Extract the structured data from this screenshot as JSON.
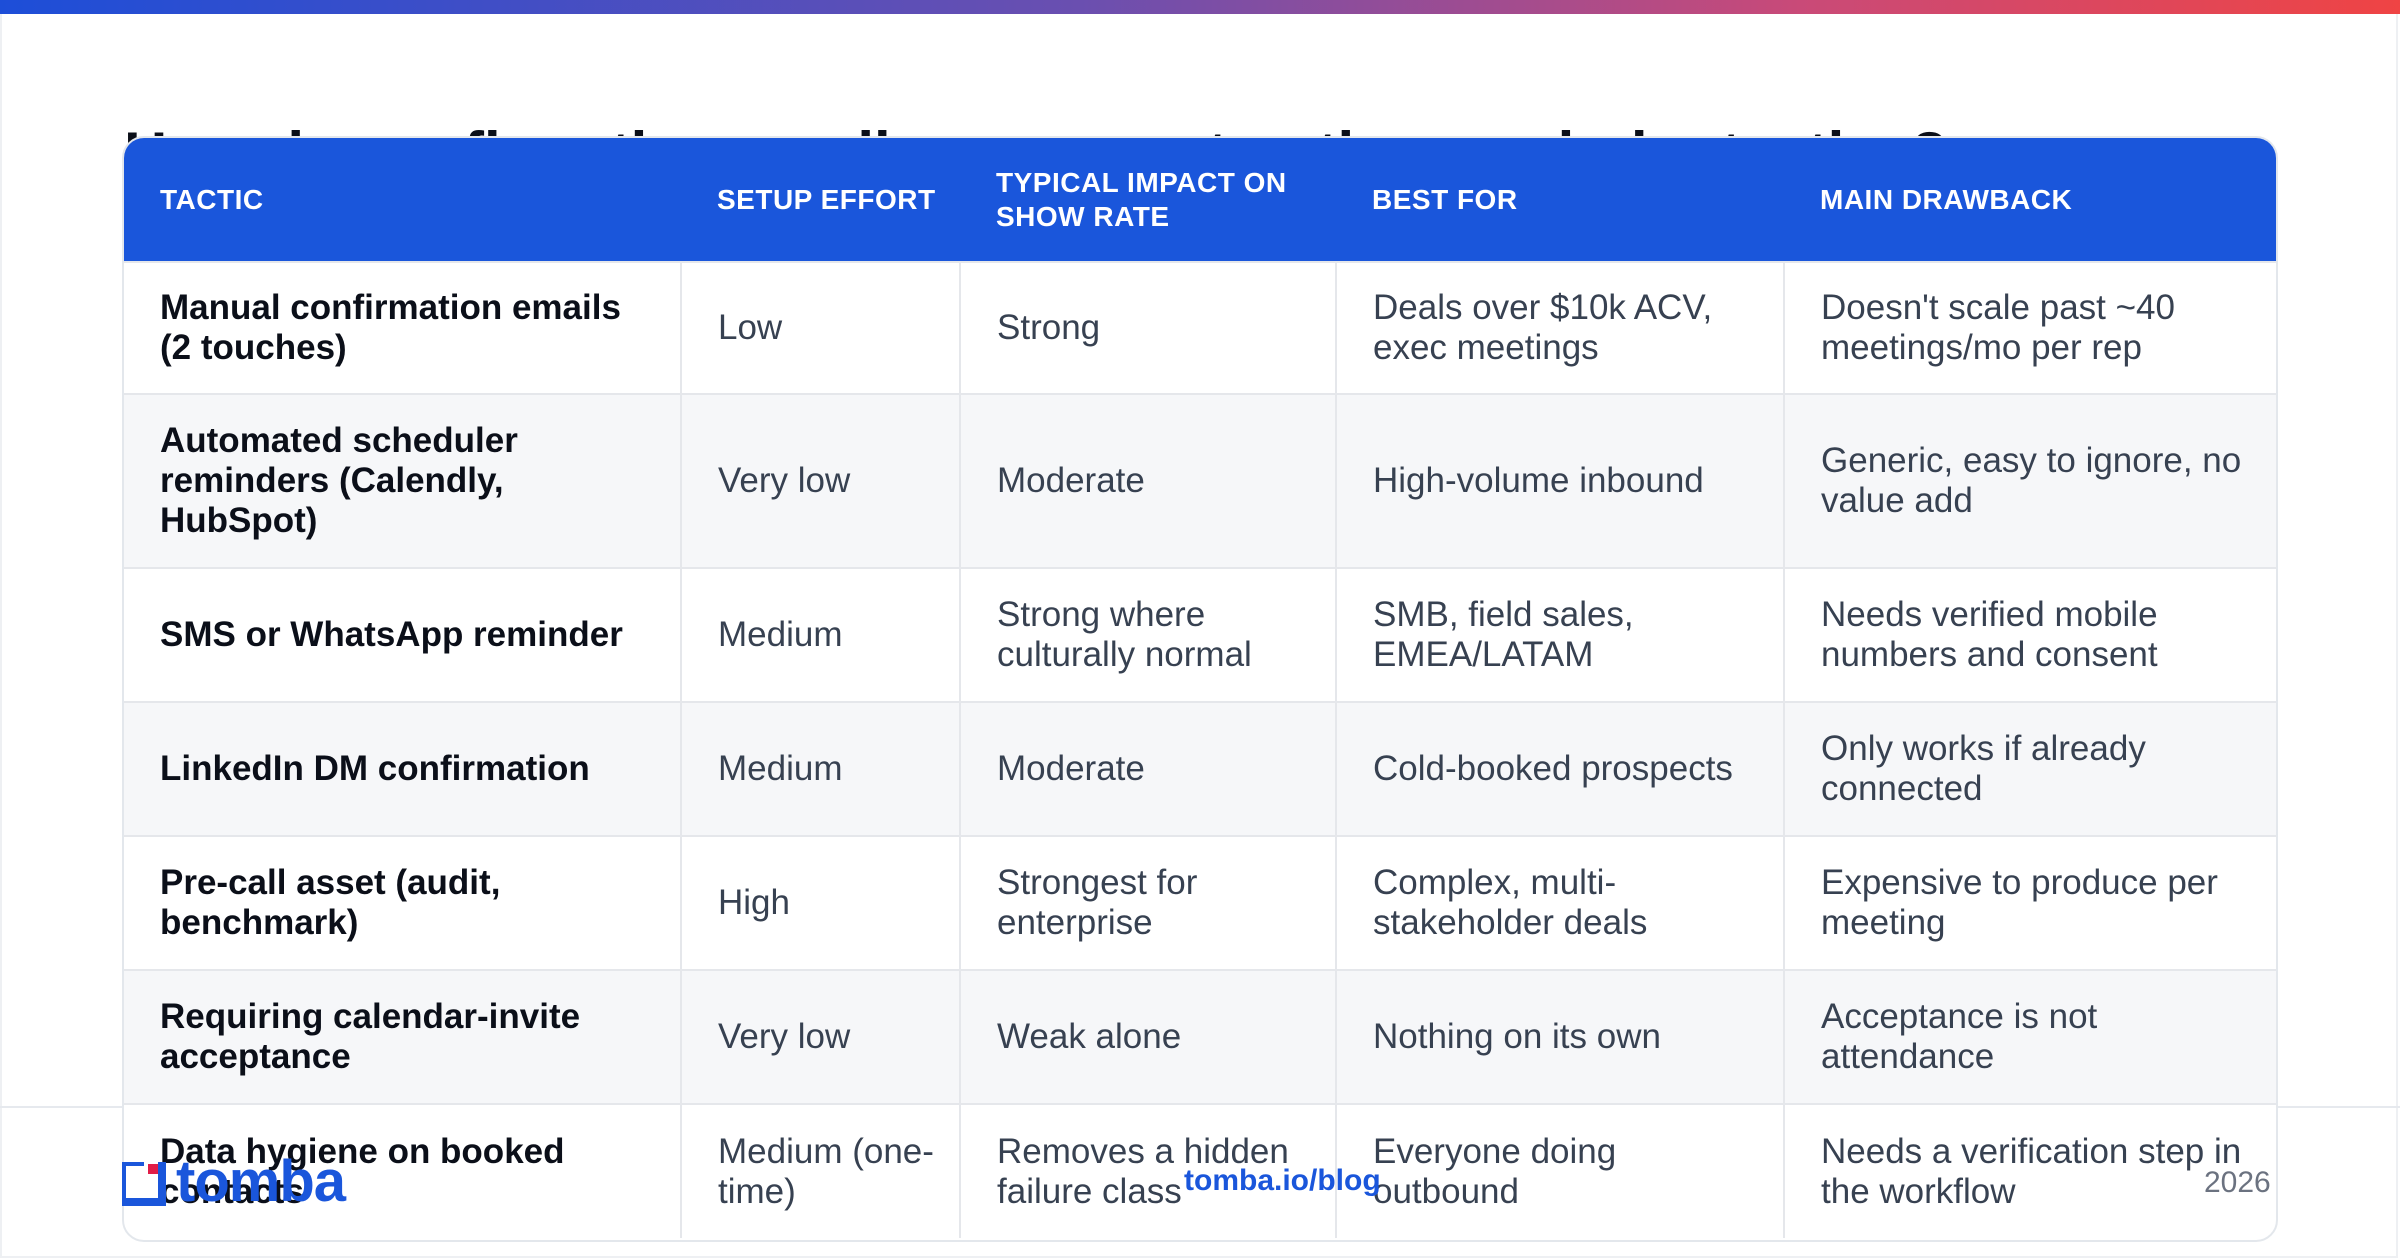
{
  "page": {
    "title": "How do confirmation emails compare to other reminder tactics?",
    "accent_color": "#1a56db"
  },
  "table": {
    "headers": [
      "TACTIC",
      "SETUP EFFORT",
      "TYPICAL IMPACT ON SHOW RATE",
      "BEST FOR",
      "MAIN DRAWBACK"
    ],
    "rows": [
      [
        "Manual confirmation emails (2 touches)",
        "Low",
        "Strong",
        "Deals over $10k ACV, exec meetings",
        "Doesn't scale past ~40 meetings/mo per rep"
      ],
      [
        "Automated scheduler reminders (Calendly, HubSpot)",
        "Very low",
        "Moderate",
        "High-volume inbound",
        "Generic, easy to ignore, no value add"
      ],
      [
        "SMS or WhatsApp reminder",
        "Medium",
        "Strong where culturally normal",
        "SMB, field sales, EMEA/LATAM",
        "Needs verified mobile numbers and consent"
      ],
      [
        "LinkedIn DM confirmation",
        "Medium",
        "Moderate",
        "Cold-booked prospects",
        "Only works if already connected"
      ],
      [
        "Pre-call asset (audit, benchmark)",
        "High",
        "Strongest for enterprise",
        "Complex, multi-stakeholder deals",
        "Expensive to produce per meeting"
      ],
      [
        "Requiring calendar-invite acceptance",
        "Very low",
        "Weak alone",
        "Nothing on its own",
        "Acceptance is not attendance"
      ],
      [
        "Data hygiene on booked contacts",
        "Medium (one-time)",
        "Removes a hidden failure class",
        "Everyone doing outbound",
        "Needs a verification step in the workflow"
      ]
    ]
  },
  "footer": {
    "logo_text": "tomba",
    "logo_icon": "tomba-logo-icon",
    "blog_link": "tomba.io/blog",
    "year": "2026"
  }
}
